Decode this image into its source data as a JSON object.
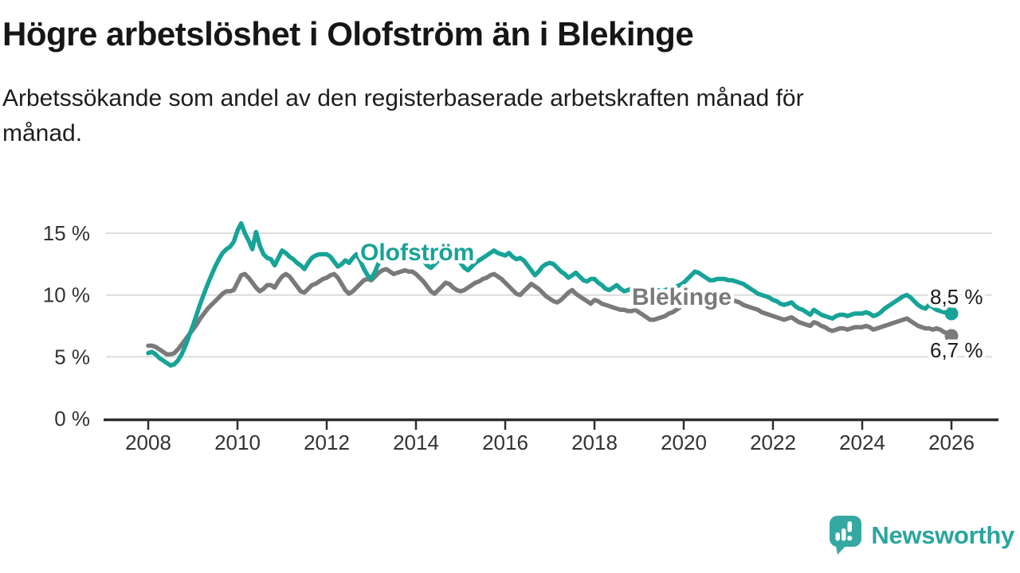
{
  "header": {
    "title": "Högre arbetslöshet i Olofström än i Blekinge",
    "subtitle_lines": [
      "Arbetssökande som andel av den registerbaserade arbetskraften månad för",
      "månad."
    ]
  },
  "footer": {
    "brand": "Newsworthy",
    "logo_icon": "newsworthy-speech-bubble-bar-chart-icon"
  },
  "colors": {
    "olofstrom_line": "#17a398",
    "blekinge_line": "#7a7a7a",
    "gridline": "#dcdcdc",
    "axis": "#2e2e2e",
    "tick_text": "#333333",
    "end_label_text": "#1a1a1a",
    "brand_teal": "#2aa59e",
    "logo_icon_teal": "#35a8a2"
  },
  "chart_data": {
    "type": "line",
    "title": "Högre arbetslöshet i Olofström än i Blekinge",
    "subtitle": "Arbetssökande som andel av den registerbaserade arbetskraften månad för månad.",
    "x_start": "2008-01",
    "x_step_months": 1,
    "x_ticks": [
      2008,
      2010,
      2012,
      2014,
      2016,
      2018,
      2020,
      2022,
      2024,
      2026
    ],
    "y_ticks": [
      0,
      5,
      10,
      15
    ],
    "y_tick_labels": [
      "0 %",
      "5 %",
      "10 %",
      "15 %"
    ],
    "ylim": [
      0,
      16.2
    ],
    "grid": "horizontal",
    "legend_position": "inline-labels",
    "series": [
      {
        "name": "Olofström",
        "end_label": "8,5 %",
        "end_value": 8.5,
        "values": [
          5.3,
          5.4,
          5.2,
          4.9,
          4.7,
          4.5,
          4.3,
          4.4,
          4.7,
          5.2,
          5.9,
          6.7,
          7.5,
          8.4,
          9.3,
          10.1,
          10.9,
          11.6,
          12.3,
          12.9,
          13.4,
          13.7,
          13.9,
          14.3,
          15.2,
          15.8,
          15.0,
          14.4,
          13.7,
          15.1,
          14.0,
          13.3,
          13.0,
          12.9,
          12.4,
          13.0,
          13.6,
          13.4,
          13.1,
          12.9,
          12.6,
          12.4,
          12.1,
          12.6,
          13.0,
          13.2,
          13.3,
          13.3,
          13.3,
          13.1,
          12.7,
          12.3,
          12.5,
          12.8,
          12.6,
          13.0,
          13.3,
          12.8,
          12.1,
          11.6,
          11.3,
          11.9,
          12.6,
          13.1,
          13.3,
          13.2,
          13.0,
          13.1,
          13.3,
          13.4,
          13.3,
          13.1,
          13.5,
          13.2,
          12.8,
          12.4,
          12.2,
          12.5,
          12.8,
          13.0,
          13.1,
          13.2,
          13.1,
          12.9,
          12.6,
          12.2,
          12.0,
          12.3,
          12.6,
          12.8,
          13.0,
          13.2,
          13.4,
          13.6,
          13.4,
          13.3,
          13.2,
          13.4,
          13.1,
          12.9,
          13.0,
          12.8,
          12.4,
          12.0,
          11.6,
          11.9,
          12.3,
          12.5,
          12.6,
          12.5,
          12.2,
          11.9,
          11.7,
          11.4,
          11.6,
          11.8,
          11.5,
          11.2,
          11.1,
          11.3,
          11.3,
          11.0,
          10.8,
          10.5,
          10.4,
          10.6,
          10.8,
          10.5,
          10.3,
          10.4,
          10.5,
          10.6,
          10.5,
          10.4,
          10.3,
          10.4,
          10.5,
          10.4,
          10.3,
          10.4,
          10.5,
          10.6,
          10.7,
          10.8,
          11.0,
          11.3,
          11.6,
          11.9,
          11.8,
          11.6,
          11.4,
          11.2,
          11.2,
          11.3,
          11.3,
          11.3,
          11.2,
          11.2,
          11.1,
          11.0,
          10.9,
          10.7,
          10.5,
          10.3,
          10.1,
          10.0,
          9.9,
          9.8,
          9.6,
          9.5,
          9.3,
          9.2,
          9.3,
          9.4,
          9.1,
          8.9,
          8.8,
          8.6,
          8.4,
          8.8,
          8.6,
          8.4,
          8.3,
          8.2,
          8.1,
          8.3,
          8.4,
          8.4,
          8.3,
          8.4,
          8.5,
          8.5,
          8.5,
          8.6,
          8.5,
          8.3,
          8.4,
          8.6,
          8.9,
          9.1,
          9.3,
          9.5,
          9.7,
          9.9,
          10.0,
          9.8,
          9.5,
          9.2,
          9.0,
          8.9,
          9.2,
          9.0,
          8.8,
          8.7,
          8.6,
          8.6,
          8.5
        ]
      },
      {
        "name": "Blekinge",
        "end_label": "6,7 %",
        "end_value": 6.7,
        "values": [
          5.9,
          5.9,
          5.8,
          5.6,
          5.4,
          5.2,
          5.2,
          5.3,
          5.6,
          6.0,
          6.4,
          6.8,
          7.2,
          7.6,
          8.1,
          8.5,
          8.9,
          9.2,
          9.5,
          9.8,
          10.1,
          10.3,
          10.3,
          10.4,
          11.0,
          11.6,
          11.7,
          11.4,
          11.0,
          10.6,
          10.3,
          10.5,
          10.8,
          10.8,
          10.6,
          11.1,
          11.5,
          11.7,
          11.5,
          11.1,
          10.7,
          10.3,
          10.2,
          10.5,
          10.8,
          10.9,
          11.1,
          11.3,
          11.4,
          11.6,
          11.7,
          11.4,
          10.9,
          10.4,
          10.1,
          10.3,
          10.6,
          10.9,
          11.2,
          11.3,
          11.2,
          11.5,
          11.8,
          12.0,
          12.1,
          11.9,
          11.7,
          11.8,
          11.9,
          12.0,
          11.9,
          11.9,
          11.7,
          11.4,
          11.1,
          10.7,
          10.3,
          10.1,
          10.4,
          10.7,
          11.0,
          10.9,
          10.6,
          10.4,
          10.3,
          10.4,
          10.6,
          10.8,
          11.0,
          11.1,
          11.3,
          11.4,
          11.6,
          11.7,
          11.5,
          11.3,
          11.0,
          10.7,
          10.4,
          10.1,
          10.0,
          10.3,
          10.6,
          10.9,
          10.7,
          10.5,
          10.2,
          9.9,
          9.7,
          9.5,
          9.4,
          9.6,
          9.9,
          10.2,
          10.4,
          10.1,
          9.9,
          9.7,
          9.5,
          9.3,
          9.6,
          9.5,
          9.3,
          9.2,
          9.1,
          9.0,
          8.9,
          8.8,
          8.8,
          8.7,
          8.7,
          8.8,
          8.6,
          8.4,
          8.2,
          8.0,
          8.0,
          8.1,
          8.2,
          8.3,
          8.5,
          8.6,
          8.8,
          9.0,
          9.2,
          9.5,
          9.8,
          10.0,
          10.0,
          9.9,
          9.8,
          9.7,
          9.6,
          9.6,
          9.6,
          9.6,
          9.6,
          9.6,
          9.5,
          9.4,
          9.2,
          9.1,
          9.0,
          8.9,
          8.8,
          8.6,
          8.5,
          8.4,
          8.3,
          8.2,
          8.1,
          8.0,
          8.1,
          8.2,
          8.0,
          7.8,
          7.7,
          7.6,
          7.5,
          7.8,
          7.7,
          7.5,
          7.4,
          7.2,
          7.1,
          7.2,
          7.3,
          7.3,
          7.2,
          7.3,
          7.4,
          7.4,
          7.4,
          7.5,
          7.4,
          7.2,
          7.3,
          7.4,
          7.5,
          7.6,
          7.7,
          7.8,
          7.9,
          8.0,
          8.1,
          7.9,
          7.7,
          7.5,
          7.4,
          7.3,
          7.3,
          7.2,
          7.3,
          7.2,
          7.0,
          6.9,
          6.7
        ]
      }
    ]
  }
}
